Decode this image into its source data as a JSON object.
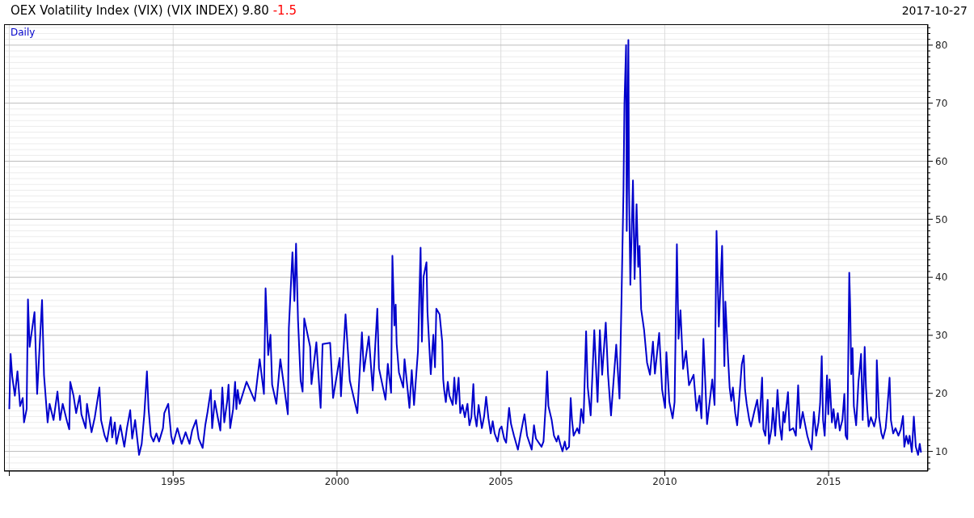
{
  "chart_data": {
    "type": "line",
    "title": "OEX Volatility Index (VIX) (VIX INDEX) 9.80 -1.5",
    "annotations": [
      "Daily",
      "2017-10-27"
    ],
    "x": [
      1990,
      1990.04,
      1990.09,
      1990.17,
      1990.25,
      1990.33,
      1990.41,
      1990.45,
      1990.53,
      1990.57,
      1990.62,
      1990.77,
      1990.85,
      1991,
      1991.06,
      1991.17,
      1991.23,
      1991.35,
      1991.47,
      1991.55,
      1991.63,
      1991.76,
      1991.83,
      1991.86,
      1991.96,
      1992.04,
      1992.15,
      1992.2,
      1992.33,
      1992.37,
      1992.51,
      1992.61,
      1992.75,
      1992.8,
      1992.91,
      1992.98,
      1993.1,
      1993.14,
      1993.22,
      1993.27,
      1993.39,
      1993.51,
      1993.59,
      1993.69,
      1993.75,
      1993.84,
      1993.96,
      1994.04,
      1994.12,
      1994.2,
      1994.25,
      1994.32,
      1994.4,
      1994.49,
      1994.57,
      1994.69,
      1994.73,
      1994.85,
      1994.94,
      1995,
      1995.13,
      1995.26,
      1995.38,
      1995.5,
      1995.58,
      1995.7,
      1995.78,
      1995.9,
      1995.98,
      1996.05,
      1996.15,
      1996.19,
      1996.27,
      1996.36,
      1996.44,
      1996.5,
      1996.56,
      1996.65,
      1996.69,
      1996.74,
      1996.83,
      1996.89,
      1996.93,
      1996.97,
      1997.03,
      1997.24,
      1997.49,
      1997.64,
      1997.77,
      1997.82,
      1997.9,
      1997.97,
      1998.02,
      1998.15,
      1998.27,
      1998.5,
      1998.53,
      1998.64,
      1998.7,
      1998.75,
      1998.81,
      1998.89,
      1998.95,
      1999,
      1999.18,
      1999.22,
      1999.37,
      1999.5,
      1999.56,
      1999.79,
      1999.88,
      2000.08,
      2000.12,
      2000.26,
      2000.39,
      2000.62,
      2000.76,
      2000.82,
      2000.97,
      2001.09,
      2001.23,
      2001.28,
      2001.48,
      2001.55,
      2001.65,
      2001.69,
      2001.75,
      2001.79,
      2001.82,
      2001.89,
      2002.02,
      2002.06,
      2002.21,
      2002.28,
      2002.35,
      2002.47,
      2002.55,
      2002.59,
      2002.64,
      2002.73,
      2002.76,
      2002.86,
      2002.94,
      2002.99,
      2003.03,
      2003.13,
      2003.21,
      2003.24,
      2003.27,
      2003.32,
      2003.38,
      2003.43,
      2003.53,
      2003.58,
      2003.63,
      2003.71,
      2003.76,
      2003.83,
      2003.9,
      2003.98,
      2004.04,
      2004.1,
      2004.16,
      2004.2,
      2004.26,
      2004.32,
      2004.36,
      2004.42,
      2004.49,
      2004.55,
      2004.62,
      2004.69,
      2004.75,
      2004.81,
      2004.9,
      2004.96,
      2005.02,
      2005.1,
      2005.16,
      2005.25,
      2005.31,
      2005.4,
      2005.52,
      2005.6,
      2005.72,
      2005.8,
      2005.94,
      2006.01,
      2006.07,
      2006.24,
      2006.3,
      2006.37,
      2006.41,
      2006.45,
      2006.55,
      2006.62,
      2006.7,
      2006.75,
      2006.81,
      2006.88,
      2006.95,
      2007,
      2007.08,
      2007.13,
      2007.17,
      2007.22,
      2007.33,
      2007.39,
      2007.45,
      2007.52,
      2007.6,
      2007.65,
      2007.74,
      2007.85,
      2007.95,
      2008.02,
      2008.09,
      2008.2,
      2008.27,
      2008.36,
      2008.52,
      2008.62,
      2008.68,
      2008.74,
      2008.77,
      2008.82,
      2008.84,
      2008.89,
      2008.91,
      2008.95,
      2009.03,
      2009.08,
      2009.14,
      2009.19,
      2009.23,
      2009.28,
      2009.37,
      2009.46,
      2009.55,
      2009.64,
      2009.7,
      2009.83,
      2009.92,
      2010.01,
      2010.05,
      2010.14,
      2010.24,
      2010.3,
      2010.37,
      2010.42,
      2010.48,
      2010.56,
      2010.65,
      2010.74,
      2010.88,
      2010.97,
      2011.06,
      2011.12,
      2011.18,
      2011.29,
      2011.45,
      2011.52,
      2011.58,
      2011.65,
      2011.75,
      2011.82,
      2011.85,
      2011.93,
      2011.98,
      2012.03,
      2012.08,
      2012.15,
      2012.21,
      2012.27,
      2012.35,
      2012.41,
      2012.45,
      2012.5,
      2012.58,
      2012.63,
      2012.73,
      2012.82,
      2012.89,
      2012.97,
      2013.01,
      2013.07,
      2013.14,
      2013.18,
      2013.26,
      2013.3,
      2013.37,
      2013.44,
      2013.51,
      2013.57,
      2013.62,
      2013.66,
      2013.76,
      2013.81,
      2013.92,
      2014,
      2014.07,
      2014.13,
      2014.21,
      2014.27,
      2014.35,
      2014.42,
      2014.48,
      2014.55,
      2014.62,
      2014.69,
      2014.74,
      2014.79,
      2014.83,
      2014.88,
      2014.95,
      2014.99,
      2015.03,
      2015.1,
      2015.15,
      2015.21,
      2015.28,
      2015.34,
      2015.42,
      2015.48,
      2015.52,
      2015.57,
      2015.63,
      2015.66,
      2015.69,
      2015.73,
      2015.77,
      2015.84,
      2015.91,
      2015.95,
      2015.99,
      2016.04,
      2016.1,
      2016.14,
      2016.18,
      2016.22,
      2016.29,
      2016.39,
      2016.45,
      2016.47,
      2016.54,
      2016.61,
      2016.66,
      2016.74,
      2016.79,
      2016.86,
      2016.9,
      2016.97,
      2017.04,
      2017.13,
      2017.2,
      2017.27,
      2017.31,
      2017.37,
      2017.43,
      2017.47,
      2017.54,
      2017.6,
      2017.66,
      2017.73,
      2017.78,
      2017.82
    ],
    "values": [
      17.3,
      26.8,
      22.9,
      19.6,
      23.8,
      17.8,
      19.2,
      15,
      17.3,
      36.2,
      28,
      34,
      19.9,
      36.1,
      23.1,
      15,
      18.2,
      15.4,
      20.3,
      15.4,
      18.2,
      15.2,
      13.8,
      22,
      19.6,
      16.6,
      19.6,
      16.4,
      14,
      18.2,
      13.3,
      15.9,
      21,
      15.4,
      12.7,
      11.7,
      15.9,
      12.4,
      15,
      11.3,
      14.5,
      10.8,
      14,
      17.1,
      12.2,
      15.4,
      9.4,
      11.3,
      16.4,
      23.8,
      17.3,
      12.7,
      11.7,
      13.1,
      11.7,
      14,
      16.6,
      18.2,
      12.7,
      11.3,
      14,
      11.3,
      13.3,
      11.3,
      13.6,
      15.4,
      12.2,
      10.6,
      14.5,
      16.8,
      20.6,
      14,
      18.7,
      15.9,
      13.6,
      21,
      15,
      18.7,
      21.5,
      14,
      17.3,
      22,
      17.3,
      20.6,
      18.2,
      22,
      18.7,
      25.9,
      19.9,
      38.1,
      26.6,
      30.1,
      21.5,
      18.2,
      25.9,
      16.4,
      31.2,
      44.3,
      35.9,
      45.8,
      32.6,
      22.2,
      20.3,
      32.9,
      28,
      21.6,
      28.8,
      17.5,
      28.5,
      28.7,
      19.2,
      26.1,
      19.5,
      33.6,
      22.2,
      16.6,
      30.5,
      23.8,
      29.8,
      20.5,
      34.6,
      24.3,
      18.9,
      25.1,
      20.1,
      43.7,
      31.7,
      35.3,
      28.5,
      23.6,
      21,
      25.9,
      17.5,
      24,
      18,
      27.3,
      45.1,
      28.9,
      40.1,
      42.6,
      34.1,
      23.3,
      30.1,
      24.5,
      34.6,
      33.6,
      28.9,
      22.4,
      20.6,
      18.5,
      22,
      19.6,
      18,
      22.7,
      18.2,
      22.7,
      16.6,
      18,
      15.9,
      18.2,
      14.5,
      15.9,
      21.6,
      16.4,
      14.3,
      18,
      16.4,
      14,
      16.1,
      19.4,
      15.7,
      13.1,
      15.2,
      13.1,
      11.7,
      13.8,
      14.3,
      12.2,
      11.5,
      17.5,
      14.7,
      12.7,
      10.3,
      12.9,
      16.4,
      12.7,
      10.3,
      14.5,
      12.2,
      10.8,
      11.7,
      18.2,
      23.8,
      17.8,
      15.4,
      12.7,
      11.7,
      12.7,
      11.3,
      10,
      11.7,
      10.3,
      10.8,
      19.2,
      15.4,
      12.7,
      14,
      13.1,
      17.3,
      14.9,
      30.7,
      21.1,
      16.2,
      30.9,
      18.5,
      30.9,
      23.2,
      32.2,
      23.2,
      16.2,
      28.4,
      19.1,
      36.1,
      54.7,
      69.9,
      80,
      48,
      80.9,
      55.2,
      38.7,
      56.7,
      39.7,
      52.6,
      41.8,
      45.4,
      34.5,
      30.9,
      25.3,
      23.2,
      28.9,
      23.4,
      30.4,
      20.6,
      17.5,
      27.1,
      18.5,
      15.7,
      18.5,
      45.7,
      29.4,
      34.3,
      24.2,
      27.3,
      21.4,
      23.2,
      17,
      19.6,
      15.7,
      29.4,
      14.7,
      22.4,
      18,
      48,
      31.5,
      45.4,
      24.7,
      35.8,
      26.3,
      21,
      18.7,
      21,
      16.6,
      14.5,
      18.9,
      25,
      26.5,
      20.6,
      18.2,
      15.4,
      14.3,
      16.8,
      18.9,
      15,
      22.7,
      13.8,
      12.7,
      18.9,
      11.3,
      14,
      17.5,
      12.7,
      20.6,
      14.5,
      12,
      16.8,
      15,
      20.2,
      13.6,
      14,
      12.7,
      21.4,
      14,
      16.8,
      15,
      12.7,
      11.3,
      10.3,
      16.8,
      12.7,
      15,
      18.2,
      26.4,
      15.4,
      12.7,
      23.1,
      16.4,
      22.4,
      15,
      17.3,
      14,
      16.6,
      13.6,
      15.4,
      19.9,
      12.7,
      12.1,
      40.8,
      34.5,
      23.3,
      27.8,
      17.8,
      14.5,
      22,
      24.3,
      26.8,
      15.4,
      28,
      21,
      17.3,
      14.3,
      15.9,
      14.3,
      15.9,
      25.7,
      15.9,
      13.1,
      12.2,
      14,
      17.3,
      22.7,
      15.4,
      13.1,
      14,
      12.7,
      13.8,
      16.1,
      10.8,
      12.7,
      11.3,
      12.7,
      9.9,
      16,
      10.8,
      9.4,
      11.3,
      9.8
    ],
    "color": "#0000cc",
    "marker": "none",
    "xlim": [
      1989.84,
      2018.03
    ],
    "xticks": [
      {
        "value": 1990,
        "label": null
      },
      1995,
      2000,
      2005,
      2010,
      2015
    ],
    "ylim": [
      6.6,
      83.6
    ],
    "yticks": [
      {
        "value": 7,
        "label": null
      },
      {
        "value": 8,
        "label": null
      },
      {
        "value": 9,
        "label": null
      },
      10,
      {
        "value": 11,
        "label": null
      },
      {
        "value": 12,
        "label": null
      },
      {
        "value": 13,
        "label": null
      },
      {
        "value": 14,
        "label": null
      },
      {
        "value": 15,
        "label": null
      },
      {
        "value": 16,
        "label": null
      },
      {
        "value": 17,
        "label": null
      },
      {
        "value": 18,
        "label": null
      },
      {
        "value": 19,
        "label": null
      },
      20,
      {
        "value": 21,
        "label": null
      },
      {
        "value": 22,
        "label": null
      },
      {
        "value": 23,
        "label": null
      },
      {
        "value": 24,
        "label": null
      },
      {
        "value": 25,
        "label": null
      },
      {
        "value": 26,
        "label": null
      },
      {
        "value": 27,
        "label": null
      },
      {
        "value": 28,
        "label": null
      },
      {
        "value": 29,
        "label": null
      },
      30,
      {
        "value": 31,
        "label": null
      },
      {
        "value": 32,
        "label": null
      },
      {
        "value": 33,
        "label": null
      },
      {
        "value": 34,
        "label": null
      },
      {
        "value": 35,
        "label": null
      },
      {
        "value": 36,
        "label": null
      },
      {
        "value": 37,
        "label": null
      },
      {
        "value": 38,
        "label": null
      },
      {
        "value": 39,
        "label": null
      },
      40,
      {
        "value": 41,
        "label": null
      },
      {
        "value": 42,
        "label": null
      },
      {
        "value": 43,
        "label": null
      },
      {
        "value": 44,
        "label": null
      },
      {
        "value": 45,
        "label": null
      },
      {
        "value": 46,
        "label": null
      },
      {
        "value": 47,
        "label": null
      },
      {
        "value": 48,
        "label": null
      },
      {
        "value": 49,
        "label": null
      },
      50,
      {
        "value": 51,
        "label": null
      },
      {
        "value": 52,
        "label": null
      },
      {
        "value": 53,
        "label": null
      },
      {
        "value": 54,
        "label": null
      },
      {
        "value": 55,
        "label": null
      },
      {
        "value": 56,
        "label": null
      },
      {
        "value": 57,
        "label": null
      },
      {
        "value": 58,
        "label": null
      },
      {
        "value": 59,
        "label": null
      },
      60,
      {
        "value": 61,
        "label": null
      },
      {
        "value": 62,
        "label": null
      },
      {
        "value": 63,
        "label": null
      },
      {
        "value": 64,
        "label": null
      },
      {
        "value": 65,
        "label": null
      },
      {
        "value": 66,
        "label": null
      },
      {
        "value": 67,
        "label": null
      },
      {
        "value": 68,
        "label": null
      },
      {
        "value": 69,
        "label": null
      },
      70,
      {
        "value": 71,
        "label": null
      },
      {
        "value": 72,
        "label": null
      },
      {
        "value": 73,
        "label": null
      },
      {
        "value": 74,
        "label": null
      },
      {
        "value": 75,
        "label": null
      },
      {
        "value": 76,
        "label": null
      },
      {
        "value": 77,
        "label": null
      },
      {
        "value": 78,
        "label": null
      },
      {
        "value": 79,
        "label": null
      },
      80,
      {
        "value": 81,
        "label": null
      },
      {
        "value": 82,
        "label": null
      },
      {
        "value": 83,
        "label": null
      }
    ],
    "grid": true
  }
}
